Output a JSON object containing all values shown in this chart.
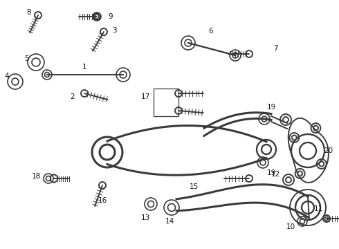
{
  "bg_color": "#ffffff",
  "line_color": "#3a3a3a",
  "label_color": "#111111",
  "figsize": [
    4.9,
    3.6
  ],
  "dpi": 100,
  "lw_main": 1.4,
  "lw_thin": 0.9,
  "lw_arm": 2.2
}
